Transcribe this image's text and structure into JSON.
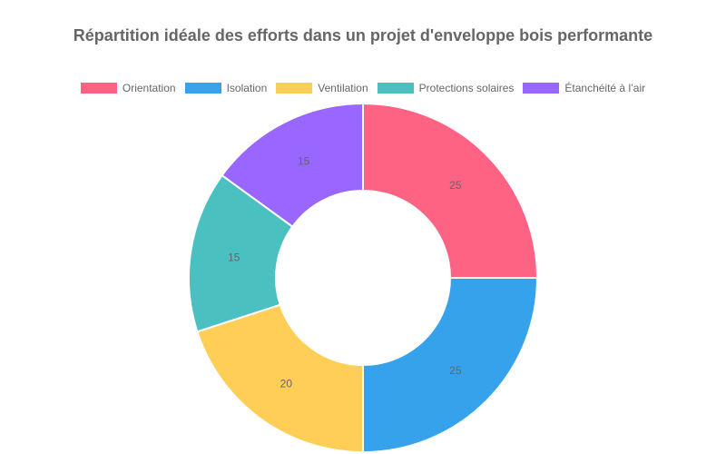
{
  "chart_data": {
    "type": "doughnut",
    "title": "Répartition idéale des efforts dans un projet d'enveloppe bois performante",
    "categories": [
      "Orientation",
      "Isolation",
      "Ventilation",
      "Protections solaires",
      "Étanchéité à l’air"
    ],
    "values": [
      25,
      25,
      20,
      15,
      15
    ],
    "colors": [
      "#FF6384",
      "#36A2EB",
      "#FFCE56",
      "#4BC0C0",
      "#9966FF"
    ],
    "legend_position": "top",
    "data_labels": [
      "25",
      "25",
      "20",
      "15",
      "15"
    ]
  },
  "header": {
    "title": "Répartition idéale des efforts dans un projet d'enveloppe bois performante"
  },
  "legend": {
    "items": [
      {
        "label": "Orientation",
        "color": "#FF6384"
      },
      {
        "label": "Isolation",
        "color": "#36A2EB"
      },
      {
        "label": "Ventilation",
        "color": "#FFCE56"
      },
      {
        "label": "Protections solaires",
        "color": "#4BC0C0"
      },
      {
        "label": "Étanchéité à l’air",
        "color": "#9966FF"
      }
    ]
  }
}
